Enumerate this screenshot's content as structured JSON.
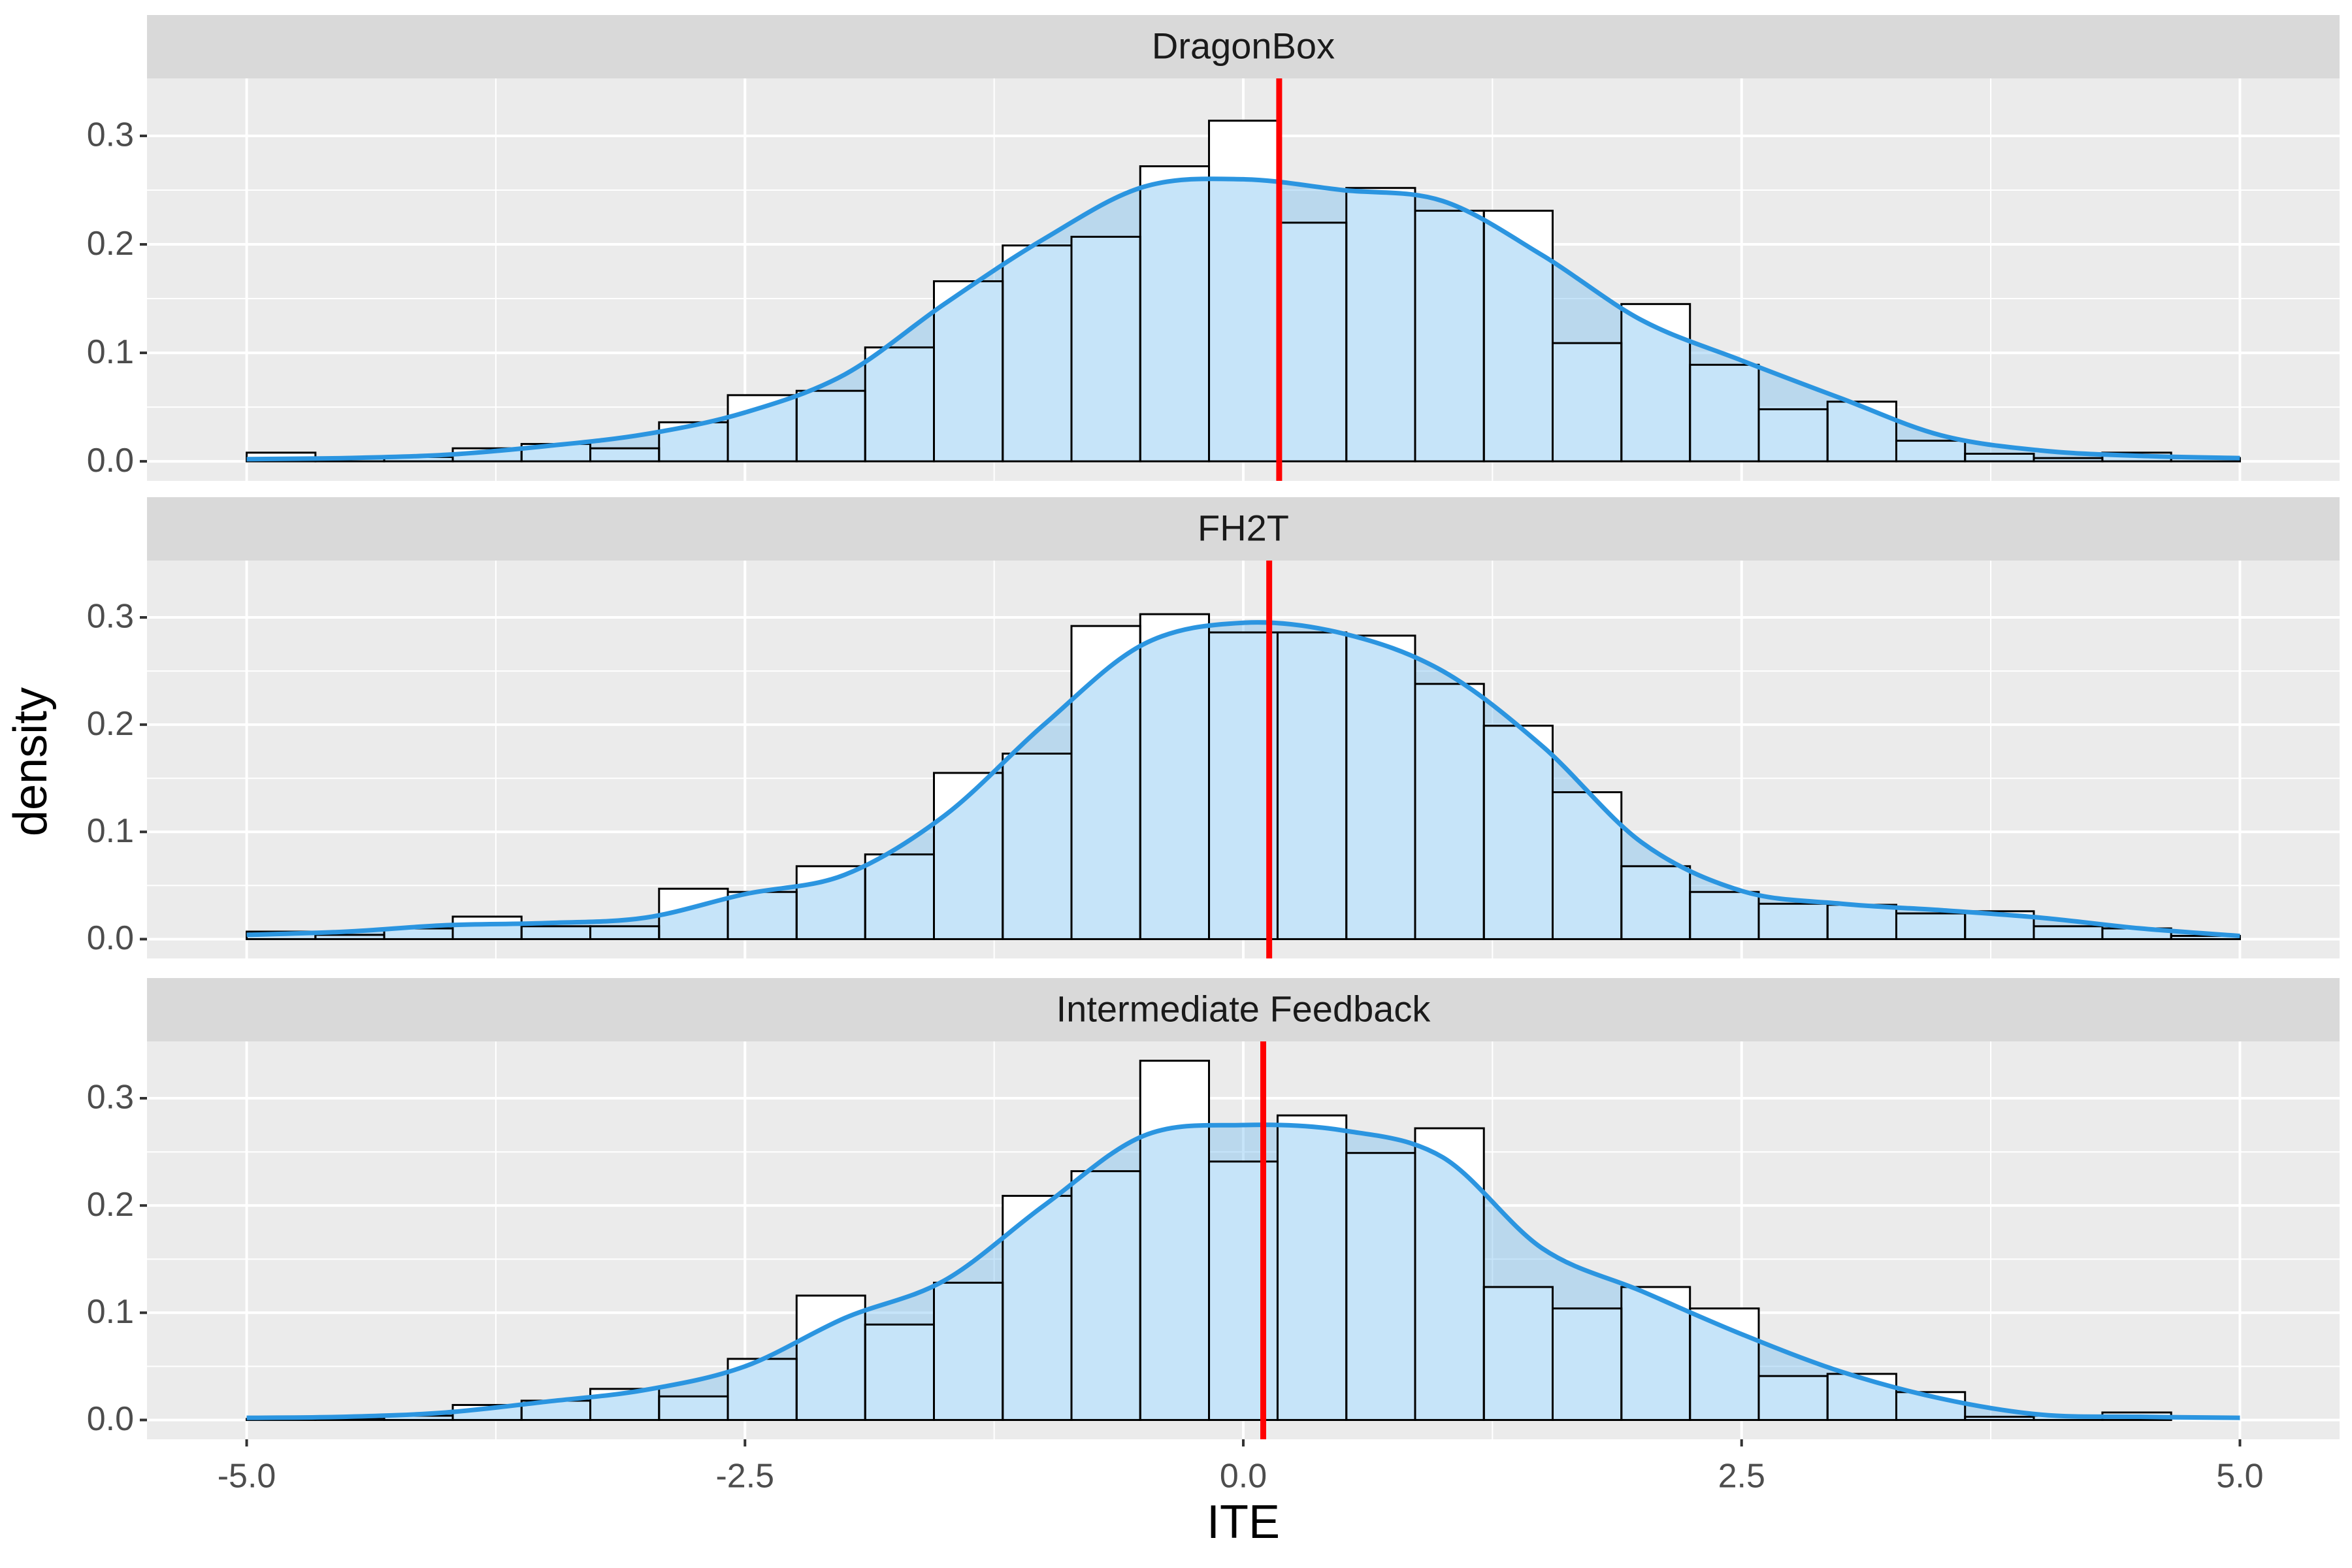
{
  "chart_data": [
    {
      "type": "histogram",
      "title": "DragonBox",
      "bins": [
        -5,
        -4.655,
        -4.31,
        -3.966,
        -3.621,
        -3.276,
        -2.931,
        -2.586,
        -2.241,
        -1.897,
        -1.552,
        -1.207,
        -0.862,
        -0.517,
        -0.172,
        0.172,
        0.517,
        0.862,
        1.207,
        1.552,
        1.897,
        2.241,
        2.586,
        2.931,
        3.276,
        3.621,
        3.966,
        4.31,
        4.655,
        5
      ],
      "values": [
        0.008,
        0.003,
        0.004,
        0.012,
        0.016,
        0.012,
        0.036,
        0.061,
        0.065,
        0.105,
        0.166,
        0.199,
        0.207,
        0.272,
        0.314,
        0.22,
        0.252,
        0.231,
        0.231,
        0.109,
        0.145,
        0.089,
        0.048,
        0.055,
        0.019,
        0.007,
        0.003,
        0.008,
        0.003
      ],
      "density": {
        "x": [
          -5,
          -4.5,
          -4,
          -3.5,
          -3,
          -2.5,
          -2,
          -1.5,
          -1,
          -0.5,
          0,
          0.5,
          1,
          1.5,
          2,
          2.5,
          3,
          3.5,
          4,
          4.5,
          5
        ],
        "y": [
          0.002,
          0.003,
          0.006,
          0.014,
          0.025,
          0.045,
          0.08,
          0.145,
          0.205,
          0.253,
          0.26,
          0.25,
          0.24,
          0.19,
          0.13,
          0.093,
          0.058,
          0.024,
          0.01,
          0.005,
          0.003
        ]
      },
      "reference_line": 0.18,
      "xlim": [
        -5.5,
        5.5
      ],
      "ylim": [
        -0.018,
        0.353
      ],
      "xticks": [
        {
          "value": -5,
          "label": "-5.0"
        },
        -2.5,
        {
          "value": 0,
          "label": "0.0"
        },
        2.5,
        {
          "value": 5,
          "label": "5.0"
        }
      ],
      "yticks": [
        {
          "value": 0,
          "label": "0.0"
        },
        0.1,
        0.2,
        0.3
      ]
    },
    {
      "type": "histogram",
      "title": "FH2T",
      "bins": [
        -5,
        -4.655,
        -4.31,
        -3.966,
        -3.621,
        -3.276,
        -2.931,
        -2.586,
        -2.241,
        -1.897,
        -1.552,
        -1.207,
        -0.862,
        -0.517,
        -0.172,
        0.172,
        0.517,
        0.862,
        1.207,
        1.552,
        1.897,
        2.241,
        2.586,
        2.931,
        3.276,
        3.621,
        3.966,
        4.31,
        4.655,
        5
      ],
      "values": [
        0.007,
        0.004,
        0.01,
        0.021,
        0.012,
        0.012,
        0.047,
        0.044,
        0.068,
        0.079,
        0.155,
        0.173,
        0.292,
        0.303,
        0.286,
        0.286,
        0.283,
        0.238,
        0.199,
        0.137,
        0.068,
        0.044,
        0.033,
        0.032,
        0.024,
        0.026,
        0.012,
        0.01,
        0.003
      ],
      "density": {
        "x": [
          -5,
          -4.5,
          -4,
          -3.5,
          -3,
          -2.5,
          -2,
          -1.5,
          -1,
          -0.5,
          0,
          0.5,
          1,
          1.5,
          2,
          2.5,
          3,
          3.5,
          4,
          4.5,
          5
        ],
        "y": [
          0.004,
          0.007,
          0.013,
          0.015,
          0.02,
          0.042,
          0.06,
          0.115,
          0.2,
          0.275,
          0.295,
          0.285,
          0.25,
          0.18,
          0.09,
          0.045,
          0.033,
          0.027,
          0.02,
          0.01,
          0.003
        ]
      },
      "reference_line": 0.13,
      "xlim": [
        -5.5,
        5.5
      ],
      "ylim": [
        -0.018,
        0.353
      ],
      "xticks": [
        {
          "value": -5,
          "label": "-5.0"
        },
        -2.5,
        {
          "value": 0,
          "label": "0.0"
        },
        2.5,
        {
          "value": 5,
          "label": "5.0"
        }
      ],
      "yticks": [
        {
          "value": 0,
          "label": "0.0"
        },
        0.1,
        0.2,
        0.3
      ],
      "y_label": "density"
    },
    {
      "type": "histogram",
      "title": "Intermediate Feedback",
      "bins": [
        -5,
        -4.655,
        -4.31,
        -3.966,
        -3.621,
        -3.276,
        -2.931,
        -2.586,
        -2.241,
        -1.897,
        -1.552,
        -1.207,
        -0.862,
        -0.517,
        -0.172,
        0.172,
        0.517,
        0.862,
        1.207,
        1.552,
        1.897,
        2.241,
        2.586,
        2.931,
        3.276,
        3.621,
        3.966,
        4.31,
        4.655,
        5
      ],
      "values": [
        0.001,
        0.001,
        0.004,
        0.014,
        0.018,
        0.029,
        0.022,
        0.057,
        0.116,
        0.089,
        0.128,
        0.209,
        0.232,
        0.335,
        0.241,
        0.284,
        0.249,
        0.272,
        0.124,
        0.104,
        0.124,
        0.104,
        0.041,
        0.043,
        0.026,
        0.003,
        0.004,
        0.007,
        0
      ],
      "density": {
        "x": [
          -5,
          -4.5,
          -4,
          -3.5,
          -3,
          -2.5,
          -2,
          -1.5,
          -1,
          -0.5,
          0,
          0.5,
          1,
          1.5,
          2,
          2.5,
          3,
          3.5,
          4,
          4.5,
          5
        ],
        "y": [
          0.002,
          0.003,
          0.007,
          0.017,
          0.028,
          0.05,
          0.095,
          0.13,
          0.2,
          0.265,
          0.275,
          0.27,
          0.245,
          0.16,
          0.12,
          0.08,
          0.045,
          0.02,
          0.005,
          0.003,
          0.002
        ]
      },
      "reference_line": 0.1,
      "xlim": [
        -5.5,
        5.5
      ],
      "ylim": [
        -0.018,
        0.353
      ],
      "xticks": [
        {
          "value": -5,
          "label": "-5.0"
        },
        -2.5,
        {
          "value": 0,
          "label": "0.0"
        },
        2.5,
        {
          "value": 5,
          "label": "5.0"
        }
      ],
      "yticks": [
        {
          "value": 0,
          "label": "0.0"
        },
        0.1,
        0.2,
        0.3
      ],
      "x_label": "ITE"
    }
  ]
}
